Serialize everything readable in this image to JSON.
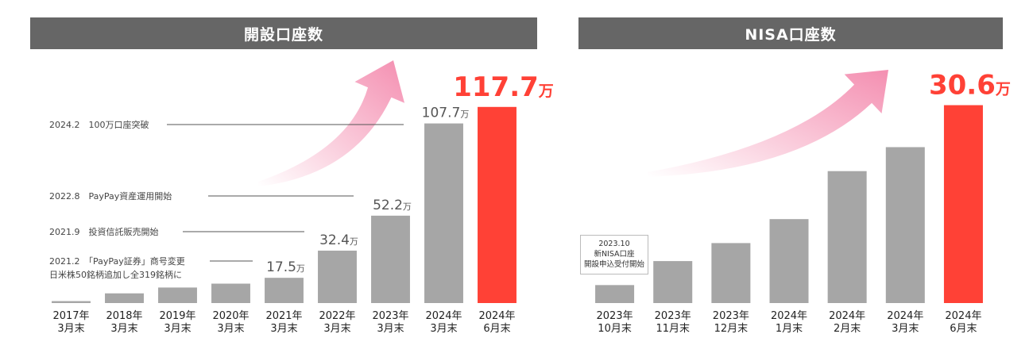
{
  "chart_data": [
    {
      "type": "bar",
      "title": "開設口座数",
      "categories": [
        [
          "2017年",
          "3月末"
        ],
        [
          "2018年",
          "3月末"
        ],
        [
          "2019年",
          "3月末"
        ],
        [
          "2020年",
          "3月末"
        ],
        [
          "2021年",
          "3月末"
        ],
        [
          "2022年",
          "3月末"
        ],
        [
          "2023年",
          "3月末"
        ],
        [
          "2024年",
          "3月末"
        ],
        [
          "2024年",
          "6月末"
        ]
      ],
      "values": [
        2,
        10,
        16,
        20,
        26,
        54,
        90,
        185,
        202
      ],
      "ylim": [
        0,
        210
      ],
      "highlight_index": 8,
      "data_labels": [
        {
          "index": 4,
          "value": "17.5",
          "unit": "万"
        },
        {
          "index": 5,
          "value": "32.4",
          "unit": "万"
        },
        {
          "index": 6,
          "value": "52.2",
          "unit": "万"
        },
        {
          "index": 7,
          "value": "107.7",
          "unit": "万"
        },
        {
          "index": 8,
          "value": "117.7",
          "unit": "万"
        }
      ],
      "annotations": [
        {
          "lines": [
            "2024.2　100万口座突破"
          ],
          "target_index": 7
        },
        {
          "lines": [
            "2022.8　PayPay資産運用開始"
          ],
          "target_index": 6
        },
        {
          "lines": [
            "2021.9　投資信託販売開始"
          ],
          "target_index": 5
        },
        {
          "lines": [
            "2021.2　「PayPay証券」商号変更",
            "日米株50銘柄追加し全319銘柄に"
          ],
          "target_index": 4
        }
      ],
      "colors": {
        "bar": "#a6a6a6",
        "highlight": "#ff4136",
        "arrow": "#f48fb1"
      }
    },
    {
      "type": "bar",
      "title": "NISA口座数",
      "categories": [
        [
          "2023年",
          "10月末"
        ],
        [
          "2023年",
          "11月末"
        ],
        [
          "2023年",
          "12月末"
        ],
        [
          "2024年",
          "1月末"
        ],
        [
          "2024年",
          "2月末"
        ],
        [
          "2024年",
          "3月末"
        ],
        [
          "2024年",
          "6月末"
        ]
      ],
      "values": [
        3,
        7,
        10,
        14,
        22,
        26,
        33
      ],
      "ylim": [
        0,
        34
      ],
      "highlight_index": 6,
      "data_labels": [
        {
          "index": 6,
          "value": "30.6",
          "unit": "万"
        }
      ],
      "note": [
        "2023.10",
        "新NISA口座",
        "開設申込受付開始"
      ],
      "colors": {
        "bar": "#a6a6a6",
        "highlight": "#ff4136",
        "arrow": "#f48fb1"
      }
    }
  ]
}
